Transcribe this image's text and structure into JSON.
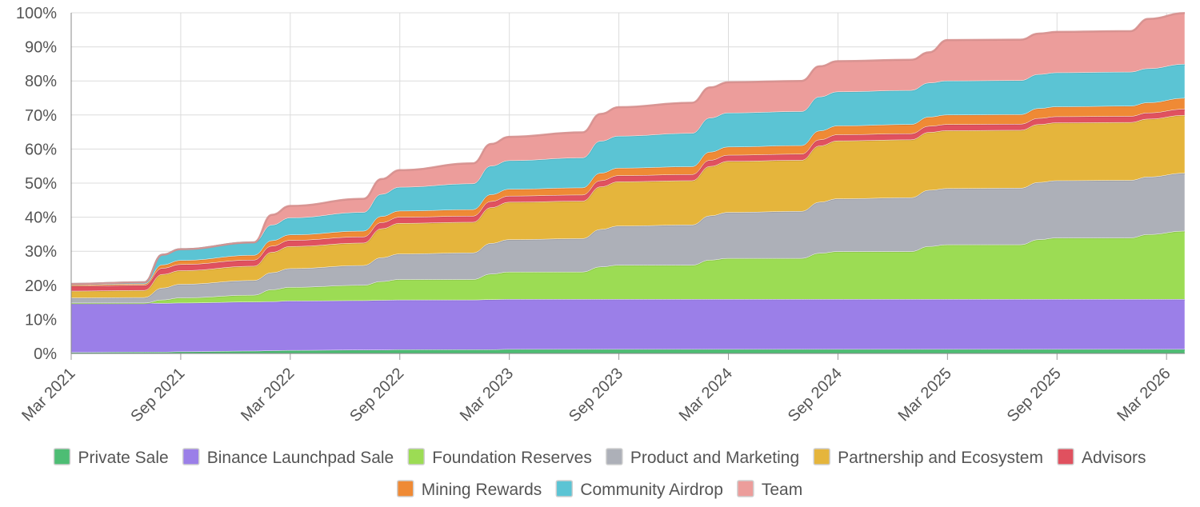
{
  "chart_data": {
    "type": "area",
    "stacked": true,
    "title": "",
    "xlabel": "",
    "ylabel": "",
    "ylim": [
      0,
      100
    ],
    "y_ticks": [
      "0%",
      "10%",
      "20%",
      "30%",
      "40%",
      "50%",
      "60%",
      "70%",
      "80%",
      "90%",
      "100%"
    ],
    "x_ticks": [
      "Mar 2021",
      "Sep 2021",
      "Mar 2022",
      "Sep 2022",
      "Mar 2023",
      "Sep 2023",
      "Mar 2024",
      "Sep 2024",
      "Mar 2025",
      "Sep 2025",
      "Mar 2026"
    ],
    "x_range_months": [
      0,
      61
    ],
    "x": [
      0,
      4,
      5,
      6,
      10,
      11,
      12,
      16,
      17,
      18,
      22,
      23,
      24,
      28,
      29,
      30,
      34,
      35,
      36,
      40,
      41,
      42,
      46,
      47,
      48,
      52,
      53,
      54,
      58,
      59,
      61
    ],
    "legend_position": "bottom",
    "series": [
      {
        "name": "Private Sale",
        "color": "#4dbd74",
        "values": [
          0.3,
          0.4,
          0.4,
          0.5,
          0.7,
          0.8,
          0.9,
          1.0,
          1.0,
          1.1,
          1.1,
          1.1,
          1.2,
          1.2,
          1.2,
          1.2,
          1.2,
          1.2,
          1.2,
          1.2,
          1.2,
          1.2,
          1.2,
          1.2,
          1.2,
          1.2,
          1.2,
          1.2,
          1.2,
          1.2,
          1.2
        ]
      },
      {
        "name": "Binance Launchpad Sale",
        "color": "#9b7fe8",
        "values": [
          14.5,
          14.4,
          14.3,
          14.3,
          14.4,
          14.4,
          14.5,
          14.5,
          14.6,
          14.6,
          14.6,
          14.7,
          14.7,
          14.7,
          14.7,
          14.7,
          14.7,
          14.7,
          14.7,
          14.7,
          14.7,
          14.7,
          14.7,
          14.7,
          14.7,
          14.7,
          14.7,
          14.7,
          14.7,
          14.7,
          14.7
        ]
      },
      {
        "name": "Foundation Reserves",
        "color": "#9cdc54",
        "values": [
          0,
          0,
          1.0,
          1.5,
          2.0,
          3.5,
          4.0,
          4.5,
          5.5,
          6.0,
          6.0,
          7.5,
          8.0,
          8.0,
          9.5,
          10.0,
          10.0,
          11.5,
          12.0,
          12.0,
          13.5,
          14.0,
          14.0,
          15.5,
          16.0,
          16.0,
          17.5,
          18.0,
          18.0,
          19.0,
          20.0
        ]
      },
      {
        "name": "Product and Marketing",
        "color": "#adb0b8",
        "values": [
          1.5,
          1.6,
          3.5,
          4.0,
          4.3,
          5.0,
          5.5,
          5.8,
          7.0,
          7.5,
          7.8,
          9.0,
          9.5,
          9.8,
          11.0,
          11.5,
          11.8,
          13.0,
          13.5,
          13.8,
          15.0,
          15.5,
          15.8,
          16.5,
          16.5,
          16.6,
          16.8,
          16.8,
          16.9,
          16.9,
          17.0
        ]
      },
      {
        "name": "Partnership and Ecosystem",
        "color": "#e5b53c",
        "values": [
          2.0,
          2.1,
          4.0,
          4.0,
          4.2,
          6.0,
          6.5,
          6.6,
          8.5,
          9.0,
          9.0,
          10.5,
          11.0,
          11.0,
          12.5,
          13.0,
          13.0,
          14.5,
          15.0,
          15.0,
          16.5,
          17.0,
          17.0,
          17.0,
          17.0,
          17.0,
          17.0,
          17.0,
          17.0,
          17.0,
          17.0
        ]
      },
      {
        "name": "Advisors",
        "color": "#e0515f",
        "values": [
          1.5,
          1.5,
          1.8,
          1.8,
          1.8,
          1.8,
          1.8,
          1.8,
          1.8,
          1.8,
          1.8,
          1.8,
          1.8,
          1.8,
          1.8,
          1.8,
          1.8,
          1.8,
          1.8,
          1.8,
          1.8,
          1.8,
          1.8,
          1.8,
          1.8,
          1.8,
          1.8,
          1.8,
          1.8,
          1.8,
          1.8
        ]
      },
      {
        "name": "Mining Rewards",
        "color": "#ef8a35",
        "values": [
          0.3,
          0.4,
          1.0,
          1.2,
          1.4,
          1.6,
          1.6,
          1.7,
          1.8,
          1.8,
          1.9,
          2.0,
          2.0,
          2.1,
          2.2,
          2.2,
          2.3,
          2.4,
          2.4,
          2.5,
          2.6,
          2.6,
          2.7,
          2.7,
          2.8,
          2.8,
          2.9,
          2.9,
          3.0,
          3.0,
          3.2
        ]
      },
      {
        "name": "Community Airdrop",
        "color": "#5bc4d4",
        "values": [
          0.3,
          0.5,
          3.0,
          3.3,
          3.8,
          4.6,
          5.0,
          5.5,
          6.5,
          7.0,
          7.6,
          8.4,
          8.4,
          8.8,
          9.4,
          9.4,
          9.8,
          10.0,
          10.0,
          10.0,
          10.0,
          10.0,
          10.0,
          10.0,
          10.0,
          10.0,
          10.0,
          10.0,
          10.0,
          10.0,
          10.0
        ]
      },
      {
        "name": "Team",
        "color": "#ec9d9b",
        "values": [
          0,
          0,
          0,
          0,
          0,
          3.0,
          3.5,
          4.0,
          4.5,
          5.0,
          6.0,
          6.5,
          7.0,
          7.5,
          8.0,
          8.5,
          9.0,
          9.0,
          9.0,
          9.0,
          9.0,
          9.0,
          9.0,
          9.0,
          12.0,
          12.0,
          12.0,
          12.0,
          12.0,
          14.6,
          15.0
        ]
      }
    ]
  }
}
